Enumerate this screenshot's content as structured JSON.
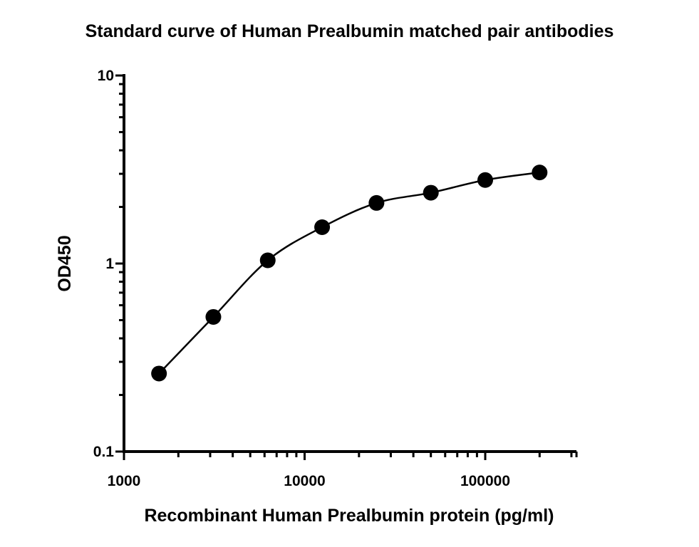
{
  "chart_data": {
    "type": "scatter",
    "title": "Standard curve of Human Prealbumin matched pair antibodies",
    "xlabel": "Recombinant Human Prealbumin protein (pg/ml)",
    "ylabel": "OD450",
    "x_scale": "log",
    "y_scale": "log",
    "xlim": [
      1000,
      320000
    ],
    "ylim": [
      0.1,
      10
    ],
    "x_tick_labels": [
      "1000",
      "10000",
      "100000"
    ],
    "y_tick_labels": [
      "0.1",
      "1",
      "10"
    ],
    "grid": false,
    "legend": "none",
    "series": [
      {
        "x": [
          1563,
          3125,
          6250,
          12500,
          25000,
          50000,
          100000,
          200000
        ],
        "y": [
          0.26,
          0.52,
          1.04,
          1.56,
          2.1,
          2.38,
          2.78,
          3.05
        ],
        "fit_curve": true
      }
    ],
    "marker_color": "#000000"
  }
}
